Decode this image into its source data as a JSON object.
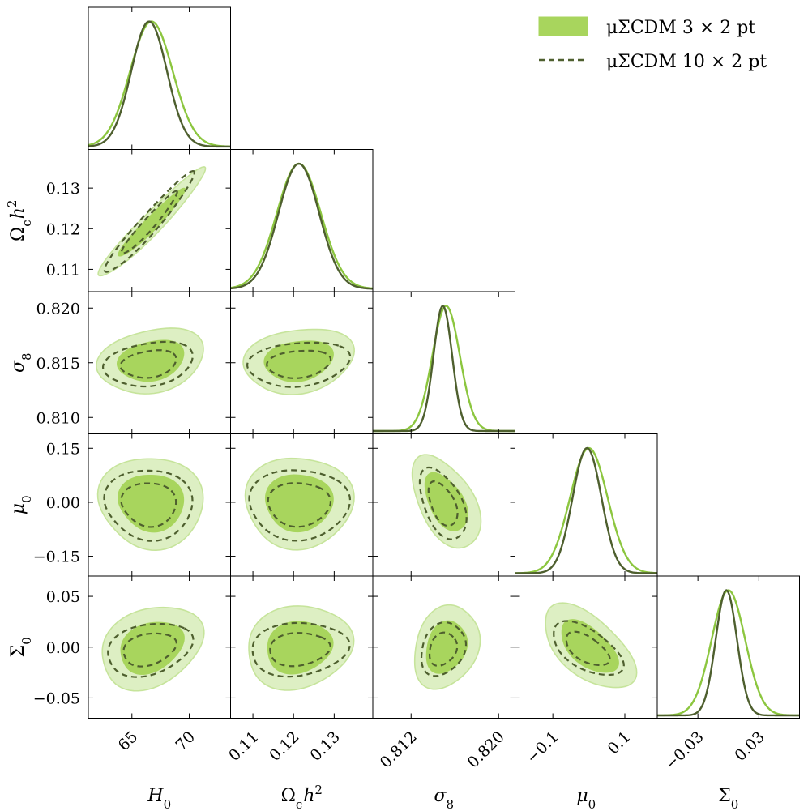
{
  "chart_data": {
    "type": "corner",
    "parameters": [
      {
        "id": "H0",
        "label_base": "H",
        "label_sub": "0",
        "label_sup": "",
        "label_italic": true,
        "range": [
          61.2,
          73.6
        ],
        "ticks": [
          65,
          70
        ],
        "tick_labels": [
          "65",
          "70"
        ],
        "mean_a": 66.7,
        "sigma_a": 1.85,
        "mean_b": 66.5,
        "sigma_b": 1.55
      },
      {
        "id": "omch2",
        "label_base": "Ω",
        "label_sub": "c",
        "label_sup": "2",
        "label_tail": "h",
        "label_italic": false,
        "range": [
          0.1045,
          0.1395
        ],
        "ticks": [
          0.11,
          0.12,
          0.13
        ],
        "tick_labels": [
          "0.11",
          "0.12",
          "0.13"
        ],
        "mean_a": 0.1213,
        "sigma_a": 0.0054,
        "mean_b": 0.1213,
        "sigma_b": 0.005
      },
      {
        "id": "sigma8",
        "label_base": "σ",
        "label_sub": "8",
        "label_sup": "",
        "label_italic": true,
        "range": [
          0.8085,
          0.8215
        ],
        "ticks": [
          0.81,
          0.815,
          0.82
        ],
        "tick_labels": [
          "0.810",
          "0.815",
          "0.820"
        ],
        "x_ticks": [
          0.812,
          0.82
        ],
        "x_tick_labels": [
          "0.812",
          "0.820"
        ],
        "mean_a": 0.8152,
        "sigma_a": 0.00125,
        "mean_b": 0.8149,
        "sigma_b": 0.00085
      },
      {
        "id": "mu0",
        "label_base": "μ",
        "label_sub": "0",
        "label_sup": "",
        "label_italic": true,
        "range": [
          -0.205,
          0.19
        ],
        "ticks": [
          -0.15,
          0,
          0.15
        ],
        "tick_labels": [
          "−0.15",
          "0.00",
          "0.15"
        ],
        "x_ticks": [
          -0.1,
          0.1
        ],
        "x_tick_labels": [
          "−0.1",
          "0.1"
        ],
        "mean_a": 0.0,
        "sigma_a": 0.052,
        "mean_b": -0.005,
        "sigma_b": 0.04
      },
      {
        "id": "Sigma0",
        "label_base": "Σ",
        "label_sub": "0",
        "label_sup": "",
        "label_italic": false,
        "range": [
          -0.07,
          0.07
        ],
        "ticks": [
          -0.05,
          0,
          0.05
        ],
        "tick_labels": [
          "−0.05",
          "0.00",
          "0.05"
        ],
        "x_ticks": [
          -0.03,
          0.03
        ],
        "x_tick_labels": [
          "−0.03",
          "0.03"
        ],
        "mean_a": 0.0,
        "sigma_a": 0.0165,
        "mean_b": -0.002,
        "sigma_b": 0.0105
      }
    ],
    "correlations": [
      [
        1,
        0.96,
        0.25,
        0.0,
        0.3
      ],
      [
        0.96,
        1,
        0.2,
        0.05,
        0.15
      ],
      [
        0.25,
        0.2,
        1,
        -0.45,
        0.25
      ],
      [
        0.0,
        0.05,
        -0.45,
        1,
        -0.55
      ],
      [
        0.3,
        0.15,
        0.25,
        -0.55,
        1
      ]
    ],
    "series": [
      {
        "name": "μΣCDM 3 × 2 pt",
        "style": "filled",
        "color": "#a8d55d",
        "inner_color": "#a8d55d",
        "outer_color": "#d9edbd",
        "line_color": "#8cc63f"
      },
      {
        "name": "μΣCDM 10 × 2 pt",
        "style": "dashed",
        "color": "#4e5f2e"
      }
    ],
    "contour_levels": [
      "68%",
      "95%"
    ]
  },
  "legend": {
    "entry_1": "μΣCDM 3 × 2 pt",
    "entry_2": "μΣCDM 10 × 2 pt"
  },
  "colors": {
    "fill_inner": "#a8d55d",
    "fill_outer": "#ddefc3",
    "line_a": "#8cc63f",
    "line_b": "#4e5f2e"
  }
}
